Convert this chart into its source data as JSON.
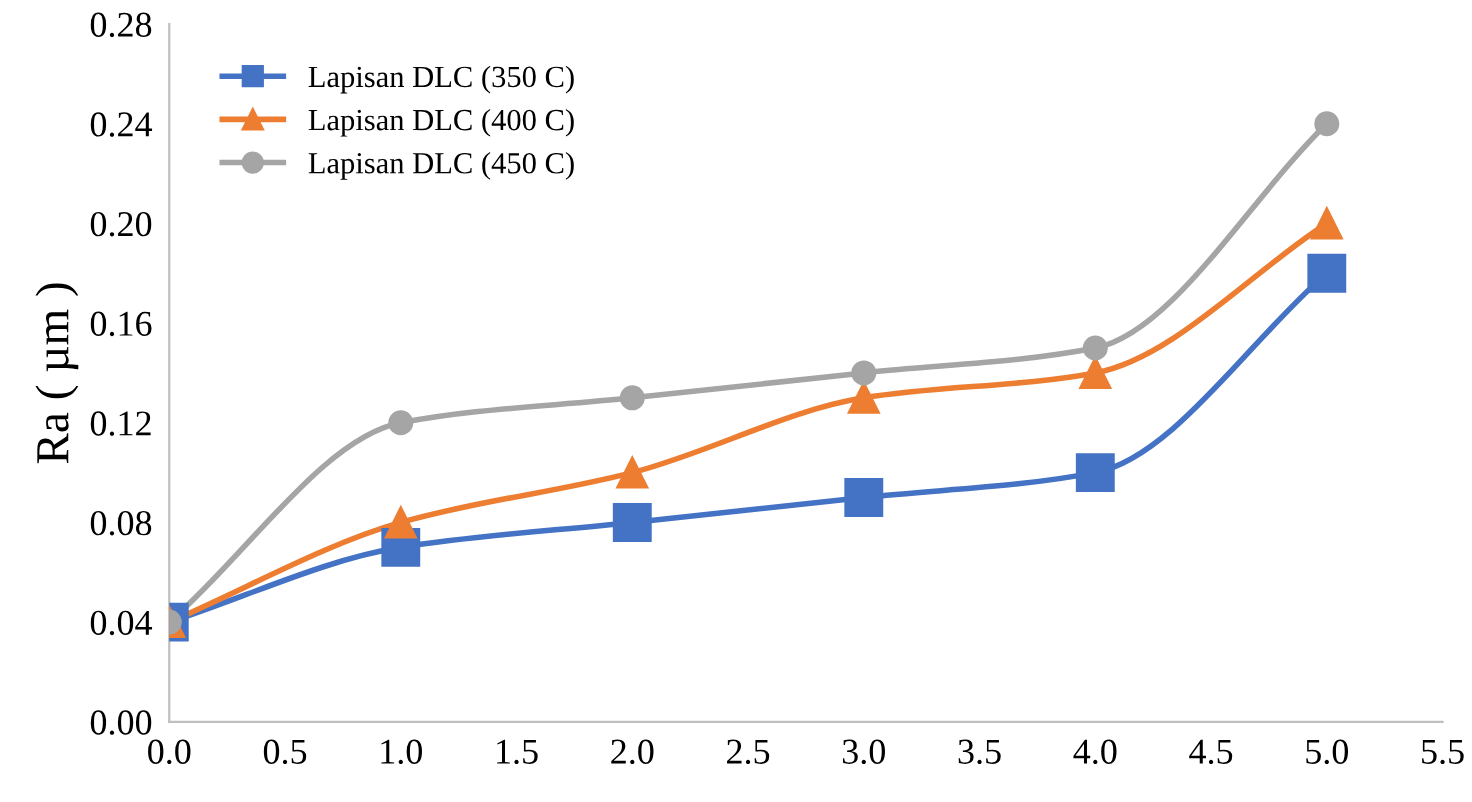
{
  "chart_data": {
    "type": "line",
    "ylabel": "Ra ( µm )",
    "x": [
      0.0,
      1.0,
      2.0,
      3.0,
      4.0,
      5.0
    ],
    "series": [
      {
        "name": "Lapisan DLC (350 C)",
        "color": "#4472c4",
        "marker": "square",
        "values": [
          0.04,
          0.07,
          0.08,
          0.09,
          0.1,
          0.18
        ]
      },
      {
        "name": "Lapisan DLC (400 C)",
        "color": "#ed7d31",
        "marker": "triangle",
        "values": [
          0.04,
          0.08,
          0.1,
          0.13,
          0.14,
          0.2
        ]
      },
      {
        "name": "Lapisan DLC (450 C)",
        "color": "#a5a5a5",
        "marker": "circle",
        "values": [
          0.04,
          0.12,
          0.13,
          0.14,
          0.15,
          0.24
        ]
      }
    ],
    "xlim": [
      0.0,
      5.5
    ],
    "xticks": [
      {
        "value": 0,
        "label": "0.0"
      },
      {
        "value": 0.5,
        "label": "0.5"
      },
      {
        "value": 1,
        "label": "1.0"
      },
      {
        "value": 1.5,
        "label": "1.5"
      },
      {
        "value": 2,
        "label": "2.0"
      },
      {
        "value": 2.5,
        "label": "2.5"
      },
      {
        "value": 3,
        "label": "3.0"
      },
      {
        "value": 3.5,
        "label": "3.5"
      },
      {
        "value": 4,
        "label": "4.0"
      },
      {
        "value": 4.5,
        "label": "4.5"
      },
      {
        "value": 5,
        "label": "5.0"
      },
      {
        "value": 5.5,
        "label": "5.5"
      }
    ],
    "ylim": [
      0.0,
      0.28
    ],
    "yticks": [
      {
        "value": 0,
        "label": "0.00"
      },
      {
        "value": 0.04,
        "label": "0.04"
      },
      {
        "value": 0.08,
        "label": "0.08"
      },
      {
        "value": 0.12,
        "label": "0.12"
      },
      {
        "value": 0.16,
        "label": "0.16"
      },
      {
        "value": 0.2,
        "label": "0.20"
      },
      {
        "value": 0.24,
        "label": "0.24"
      },
      {
        "value": 0.28,
        "label": "0.28"
      }
    ],
    "grid": false,
    "legend": "top left",
    "line_style": "solid"
  }
}
